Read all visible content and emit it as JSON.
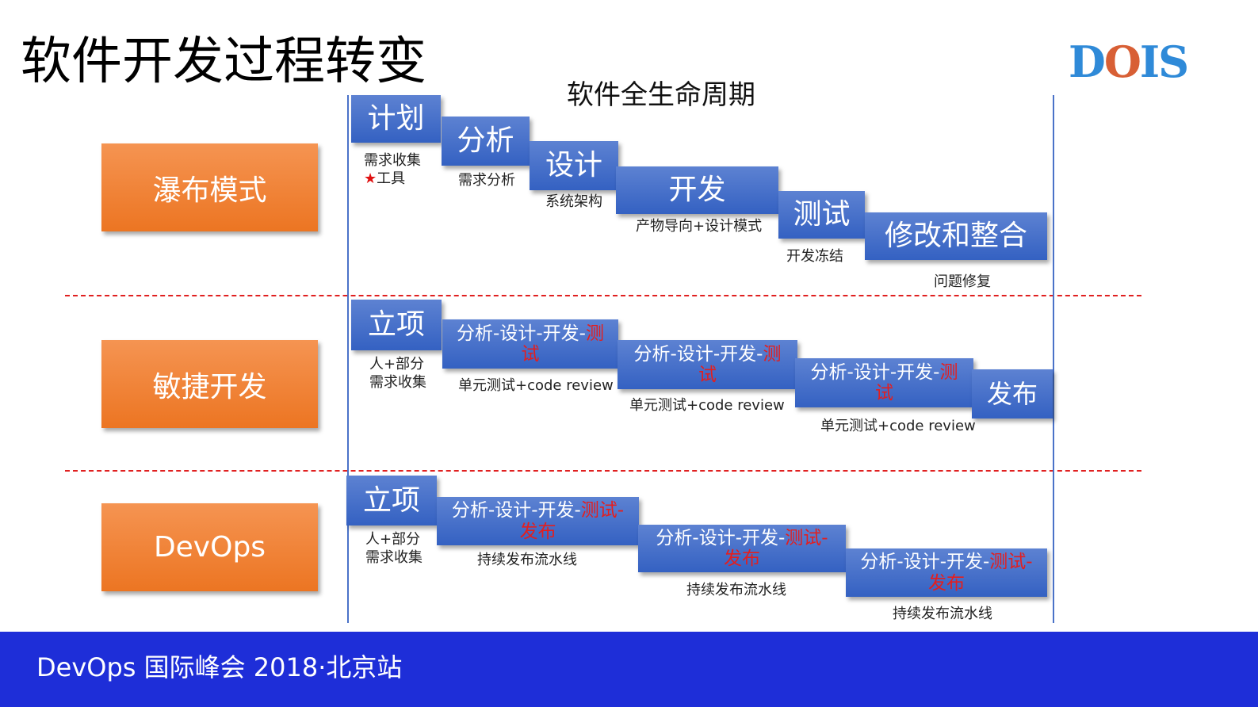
{
  "title": "软件开发过程转变",
  "subtitle": "软件全生命周期",
  "logo": {
    "text": "DOIS",
    "colors": {
      "D": "#2f8ad8",
      "O": "#d85f35",
      "IS": "#2f8ad8"
    }
  },
  "modes": [
    "瀑布模式",
    "敏捷开发",
    "DevOps"
  ],
  "waterfall": {
    "boxes": [
      "计划",
      "分析",
      "设计",
      "开发",
      "测试",
      "修改和整合"
    ],
    "labels": [
      "需求收集",
      "工具",
      "需求分析",
      "系统架构",
      "产物导向+设计模式",
      "开发冻结",
      "问题修复"
    ],
    "star_icon": "star-icon"
  },
  "agile": {
    "start": "立项",
    "start_label_1": "人+部分",
    "start_label_2": "需求收集",
    "iter_plain": "分析-设计-开发-",
    "iter_red_1": "测",
    "iter_red_2": "试",
    "iter_label": "单元测试+code review",
    "release": "发布"
  },
  "devops": {
    "start": "立项",
    "start_label_1": "人+部分",
    "start_label_2": "需求收集",
    "iter_plain": "分析-设计-开发-",
    "iter_red_1": "测试-",
    "iter_red_2": "发布",
    "iter_label": "持续发布流水线"
  },
  "colors": {
    "box": "#3461c2",
    "mode": "#ec7522",
    "highlight": "#e41e1e",
    "footer": "#1e2ed8"
  },
  "footer": "DevOps 国际峰会 2018·北京站"
}
